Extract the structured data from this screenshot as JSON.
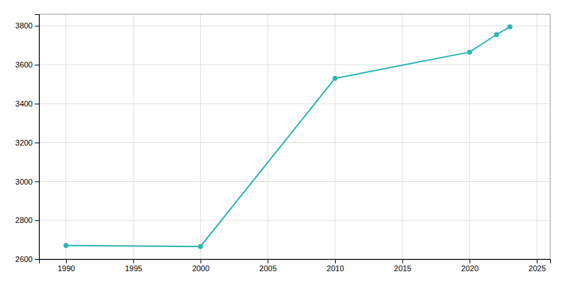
{
  "chart_data": {
    "type": "line",
    "x": [
      1990,
      2000,
      2010,
      2020,
      2022,
      2023
    ],
    "values": [
      2670,
      2665,
      3530,
      3665,
      3755,
      3795
    ],
    "color": "#2ab5b5",
    "marker": "circle",
    "xlim": [
      1988,
      2026
    ],
    "ylim": [
      2600,
      3860
    ],
    "xticks": [
      1990,
      1995,
      2000,
      2005,
      2010,
      2015,
      2020,
      2025
    ],
    "yticks": [
      2600,
      2800,
      3000,
      3200,
      3400,
      3600,
      3800
    ],
    "grid": true
  }
}
